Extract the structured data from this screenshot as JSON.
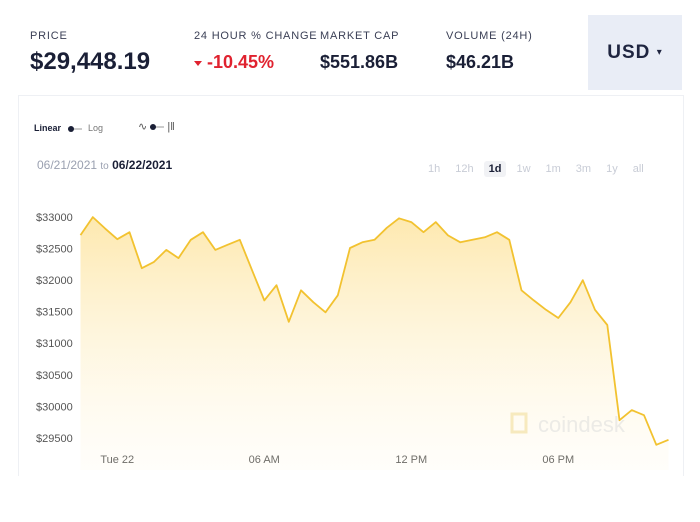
{
  "header": {
    "price_label": "PRICE",
    "price": "$29,448.19",
    "change_label": "24 HOUR % CHANGE",
    "change": "-10.45%",
    "market_cap_label": "MARKET CAP",
    "market_cap": "$551.86B",
    "volume_label": "VOLUME (24H)",
    "volume": "$46.21B",
    "currency": "USD"
  },
  "controls": {
    "scales": [
      "Linear",
      "Log"
    ],
    "date_from": "06/21/2021",
    "date_to_word": "to",
    "date_to": "06/22/2021",
    "timeframes": [
      "1h",
      "12h",
      "1d",
      "1w",
      "1m",
      "3m",
      "1y",
      "all"
    ],
    "active_timeframe": "1d",
    "watermark": "coindesk"
  },
  "chart_data": {
    "type": "area",
    "categories": [
      null,
      null,
      null,
      "Tue 22",
      null,
      null,
      null,
      null,
      null,
      null,
      null,
      null,
      null,
      null,
      null,
      "06 AM",
      null,
      null,
      null,
      null,
      null,
      null,
      null,
      null,
      null,
      null,
      null,
      "12 PM",
      null,
      null,
      null,
      null,
      null,
      null,
      null,
      null,
      null,
      null,
      null,
      "06 PM",
      null,
      null,
      null,
      null,
      null,
      null,
      null,
      null,
      null
    ],
    "values": [
      32715,
      33000,
      32820,
      32650,
      32760,
      32190,
      32290,
      32480,
      32350,
      32640,
      32760,
      32480,
      32560,
      32640,
      32160,
      31680,
      31920,
      31340,
      31840,
      31650,
      31490,
      31760,
      32510,
      32600,
      32640,
      32830,
      32980,
      32920,
      32760,
      32920,
      32710,
      32600,
      32640,
      32680,
      32760,
      32640,
      31840,
      31680,
      31530,
      31400,
      31650,
      32000,
      31530,
      31290,
      29780,
      29940,
      29860,
      29390,
      29470
    ],
    "color": "#f2c230",
    "ylim": [
      29070,
      33350
    ],
    "yticks": [
      {
        "value": 29500,
        "label": "$29500"
      },
      {
        "value": 30000,
        "label": "$30000"
      },
      {
        "value": 30500,
        "label": "$30500"
      },
      {
        "value": 31000,
        "label": "$31000"
      },
      {
        "value": 31500,
        "label": "$31500"
      },
      {
        "value": 32000,
        "label": "$32000"
      },
      {
        "value": 32500,
        "label": "$32500"
      },
      {
        "value": 33000,
        "label": "$33000"
      }
    ]
  }
}
